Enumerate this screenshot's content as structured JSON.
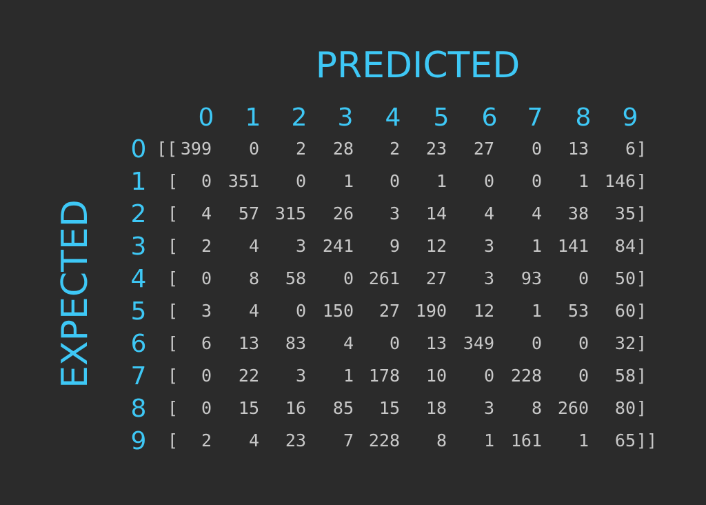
{
  "chart_data": {
    "type": "table",
    "title": "PREDICTED",
    "row_axis_label": "EXPECTED",
    "column_labels": [
      "0",
      "1",
      "2",
      "3",
      "4",
      "5",
      "6",
      "7",
      "8",
      "9"
    ],
    "row_labels": [
      "0",
      "1",
      "2",
      "3",
      "4",
      "5",
      "6",
      "7",
      "8",
      "9"
    ],
    "matrix": [
      [
        399,
        0,
        2,
        28,
        2,
        23,
        27,
        0,
        13,
        6
      ],
      [
        0,
        351,
        0,
        1,
        0,
        1,
        0,
        0,
        1,
        146
      ],
      [
        4,
        57,
        315,
        26,
        3,
        14,
        4,
        4,
        38,
        35
      ],
      [
        2,
        4,
        3,
        241,
        9,
        12,
        3,
        1,
        141,
        84
      ],
      [
        0,
        8,
        58,
        0,
        261,
        27,
        3,
        93,
        0,
        50
      ],
      [
        3,
        4,
        0,
        150,
        27,
        190,
        12,
        1,
        53,
        60
      ],
      [
        6,
        13,
        83,
        4,
        0,
        13,
        349,
        0,
        0,
        32
      ],
      [
        0,
        22,
        3,
        1,
        178,
        10,
        0,
        228,
        0,
        58
      ],
      [
        0,
        15,
        16,
        85,
        15,
        18,
        3,
        8,
        260,
        80
      ],
      [
        2,
        4,
        23,
        7,
        228,
        8,
        1,
        161,
        1,
        65
      ]
    ],
    "brackets": {
      "first_open": "[[",
      "row_open": "[",
      "row_close": "]",
      "last_close": "]]"
    },
    "colors": {
      "background": "#2b2b2b",
      "labels": "#3ec8f6",
      "values": "#c8c8c8"
    }
  }
}
